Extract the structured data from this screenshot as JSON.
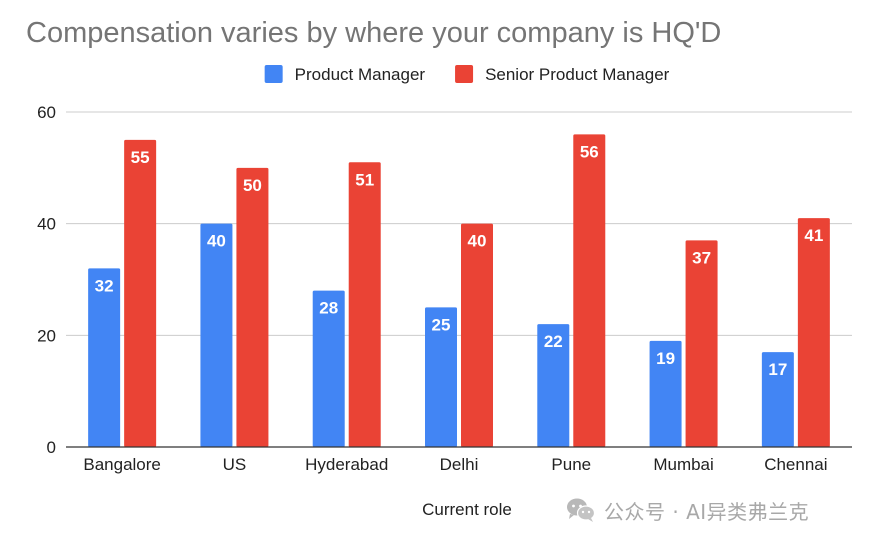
{
  "chart_data": {
    "type": "bar",
    "title": "Compensation varies by where your company is HQ'D",
    "xlabel": "Current role",
    "ylabel": "",
    "categories": [
      "Bangalore",
      "US",
      "Hyderabad",
      "Delhi",
      "Pune",
      "Mumbai",
      "Chennai"
    ],
    "series": [
      {
        "name": "Product Manager",
        "color": "#4285f4",
        "values": [
          32,
          40,
          28,
          25,
          22,
          19,
          17
        ]
      },
      {
        "name": "Senior Product Manager",
        "color": "#ea4335",
        "values": [
          55,
          50,
          51,
          40,
          56,
          37,
          41
        ]
      }
    ],
    "ylim": [
      0,
      60
    ],
    "yticks": [
      0,
      20,
      40,
      60
    ],
    "grid": true,
    "legend_position": "top-center",
    "data_labels": true
  },
  "colors": {
    "title": "#757575",
    "axis_text": "#222222",
    "gridline": "#cccccc",
    "baseline": "#333333",
    "data_label": "#ffffff"
  },
  "watermark": {
    "icon": "wechat-icon",
    "text": "公众号 · AI异类弗兰克"
  }
}
